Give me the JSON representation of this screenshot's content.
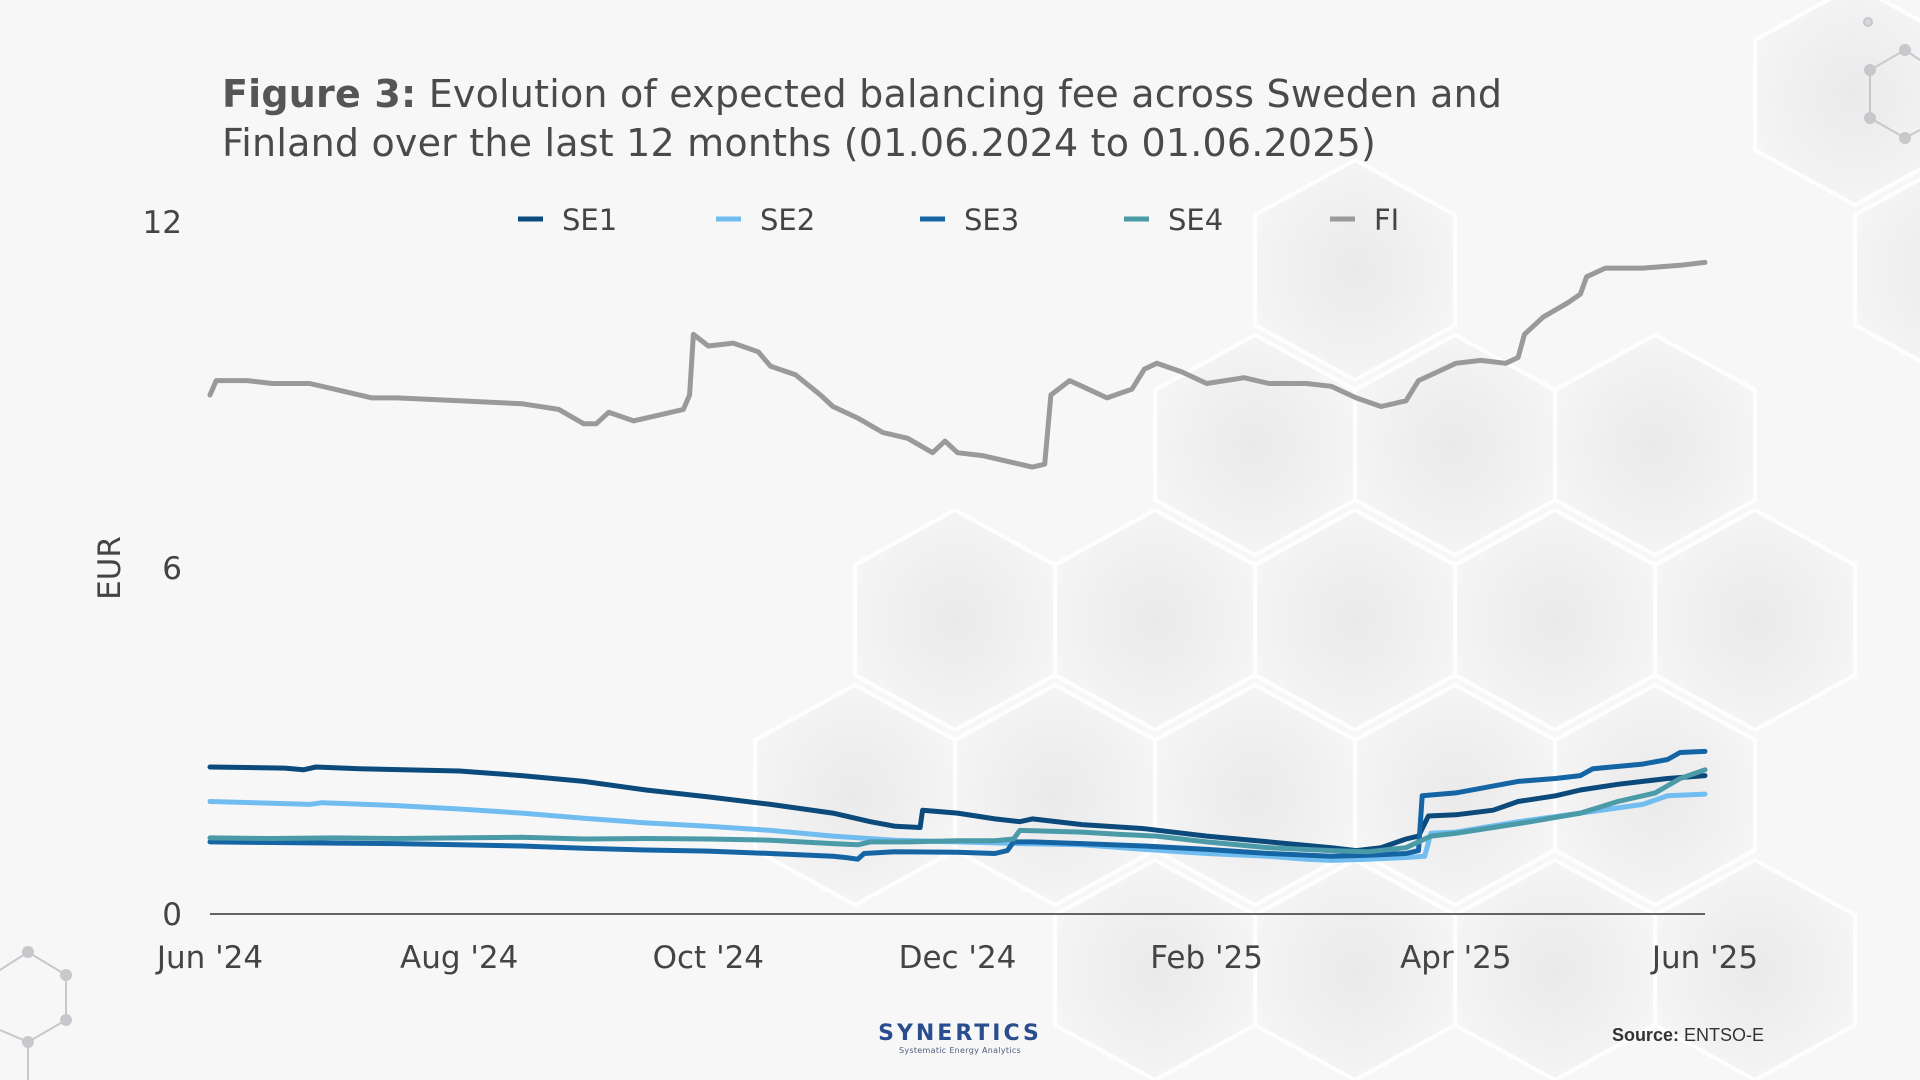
{
  "title": {
    "bold": "Figure 3:",
    "text": "Evolution of expected balancing fee across Sweden and Finland over the last 12 months (01.06.2024 to 01.06.2025)"
  },
  "footer": {
    "logo_name": "SYNERTICS",
    "logo_tagline": "Systematic Energy Analytics",
    "source_label": "Source:",
    "source_value": "ENTSO-E"
  },
  "colors": {
    "SE1": "#0b4a7a",
    "SE2": "#72bdf0",
    "SE3": "#1565a5",
    "SE4": "#4b9aa8",
    "FI": "#9a9a9a",
    "axis": "#333333",
    "text": "#444444"
  },
  "chart_data": {
    "type": "line",
    "title": "Figure 3: Evolution of expected balancing fee across Sweden and Finland over the last 12 months (01.06.2024 to 01.06.2025)",
    "xlabel": "",
    "ylabel": "EUR",
    "ylim": [
      0,
      12
    ],
    "yticks": [
      0,
      6,
      12
    ],
    "xlim": [
      0,
      12
    ],
    "xticks": [
      {
        "value": 0,
        "label": "Jun '24"
      },
      {
        "value": 2,
        "label": "Aug '24"
      },
      {
        "value": 4,
        "label": "Oct '24"
      },
      {
        "value": 6,
        "label": "Dec '24"
      },
      {
        "value": 8,
        "label": "Feb '25"
      },
      {
        "value": 10,
        "label": "Apr '25"
      },
      {
        "value": 12,
        "label": "Jun '25"
      }
    ],
    "legend_position": "top",
    "grid": false,
    "series": [
      {
        "name": "SE1",
        "points": [
          [
            0,
            2.55
          ],
          [
            0.6,
            2.53
          ],
          [
            0.75,
            2.5
          ],
          [
            0.85,
            2.55
          ],
          [
            1.2,
            2.52
          ],
          [
            2,
            2.48
          ],
          [
            2.5,
            2.4
          ],
          [
            3,
            2.3
          ],
          [
            3.5,
            2.15
          ],
          [
            4,
            2.03
          ],
          [
            4.5,
            1.9
          ],
          [
            5,
            1.75
          ],
          [
            5.3,
            1.6
          ],
          [
            5.5,
            1.52
          ],
          [
            5.7,
            1.5
          ],
          [
            5.72,
            1.8
          ],
          [
            6,
            1.75
          ],
          [
            6.3,
            1.65
          ],
          [
            6.5,
            1.6
          ],
          [
            6.6,
            1.65
          ],
          [
            7,
            1.55
          ],
          [
            7.5,
            1.48
          ],
          [
            8,
            1.35
          ],
          [
            8.5,
            1.25
          ],
          [
            9,
            1.15
          ],
          [
            9.2,
            1.1
          ],
          [
            9.4,
            1.15
          ],
          [
            9.6,
            1.3
          ],
          [
            9.7,
            1.35
          ],
          [
            9.78,
            1.7
          ],
          [
            10,
            1.72
          ],
          [
            10.3,
            1.8
          ],
          [
            10.5,
            1.95
          ],
          [
            10.8,
            2.05
          ],
          [
            11,
            2.15
          ],
          [
            11.3,
            2.25
          ],
          [
            11.5,
            2.3
          ],
          [
            11.7,
            2.35
          ],
          [
            12,
            2.4
          ]
        ]
      },
      {
        "name": "SE2",
        "points": [
          [
            0,
            1.95
          ],
          [
            0.5,
            1.92
          ],
          [
            0.8,
            1.9
          ],
          [
            0.9,
            1.93
          ],
          [
            1.5,
            1.88
          ],
          [
            2,
            1.82
          ],
          [
            2.5,
            1.75
          ],
          [
            3,
            1.66
          ],
          [
            3.5,
            1.58
          ],
          [
            4,
            1.52
          ],
          [
            4.5,
            1.45
          ],
          [
            5,
            1.35
          ],
          [
            5.5,
            1.28
          ],
          [
            6,
            1.25
          ],
          [
            6.5,
            1.22
          ],
          [
            7,
            1.2
          ],
          [
            7.5,
            1.12
          ],
          [
            8,
            1.05
          ],
          [
            8.5,
            1.0
          ],
          [
            8.8,
            0.95
          ],
          [
            9,
            0.93
          ],
          [
            9.3,
            0.95
          ],
          [
            9.6,
            0.98
          ],
          [
            9.75,
            1.0
          ],
          [
            9.8,
            1.4
          ],
          [
            10,
            1.42
          ],
          [
            10.5,
            1.6
          ],
          [
            11,
            1.75
          ],
          [
            11.5,
            1.9
          ],
          [
            11.7,
            2.05
          ],
          [
            12,
            2.08
          ]
        ]
      },
      {
        "name": "SE3",
        "points": [
          [
            0,
            1.25
          ],
          [
            0.5,
            1.24
          ],
          [
            1,
            1.23
          ],
          [
            1.5,
            1.22
          ],
          [
            2,
            1.2
          ],
          [
            2.5,
            1.18
          ],
          [
            3,
            1.14
          ],
          [
            3.5,
            1.11
          ],
          [
            4,
            1.09
          ],
          [
            4.5,
            1.05
          ],
          [
            5,
            1.0
          ],
          [
            5.1,
            0.98
          ],
          [
            5.2,
            0.95
          ],
          [
            5.25,
            1.05
          ],
          [
            5.5,
            1.08
          ],
          [
            6,
            1.07
          ],
          [
            6.3,
            1.05
          ],
          [
            6.4,
            1.1
          ],
          [
            6.45,
            1.25
          ],
          [
            6.6,
            1.25
          ],
          [
            7,
            1.22
          ],
          [
            7.5,
            1.18
          ],
          [
            8,
            1.12
          ],
          [
            8.5,
            1.05
          ],
          [
            9,
            1.0
          ],
          [
            9.3,
            1.02
          ],
          [
            9.6,
            1.05
          ],
          [
            9.7,
            1.1
          ],
          [
            9.73,
            2.05
          ],
          [
            10,
            2.1
          ],
          [
            10.5,
            2.3
          ],
          [
            10.8,
            2.35
          ],
          [
            11,
            2.4
          ],
          [
            11.1,
            2.52
          ],
          [
            11.5,
            2.6
          ],
          [
            11.7,
            2.68
          ],
          [
            11.8,
            2.8
          ],
          [
            12,
            2.82
          ]
        ]
      },
      {
        "name": "SE4",
        "points": [
          [
            0,
            1.32
          ],
          [
            0.5,
            1.31
          ],
          [
            1,
            1.32
          ],
          [
            1.5,
            1.31
          ],
          [
            2,
            1.32
          ],
          [
            2.5,
            1.33
          ],
          [
            3,
            1.3
          ],
          [
            3.5,
            1.31
          ],
          [
            4,
            1.3
          ],
          [
            4.5,
            1.28
          ],
          [
            5,
            1.22
          ],
          [
            5.2,
            1.2
          ],
          [
            5.3,
            1.25
          ],
          [
            5.6,
            1.25
          ],
          [
            6,
            1.27
          ],
          [
            6.3,
            1.27
          ],
          [
            6.45,
            1.3
          ],
          [
            6.5,
            1.45
          ],
          [
            7,
            1.42
          ],
          [
            7.3,
            1.38
          ],
          [
            7.6,
            1.35
          ],
          [
            8,
            1.25
          ],
          [
            8.5,
            1.15
          ],
          [
            9,
            1.1
          ],
          [
            9.3,
            1.08
          ],
          [
            9.6,
            1.15
          ],
          [
            9.8,
            1.35
          ],
          [
            10,
            1.4
          ],
          [
            10.3,
            1.5
          ],
          [
            10.6,
            1.6
          ],
          [
            11,
            1.75
          ],
          [
            11.3,
            1.95
          ],
          [
            11.6,
            2.1
          ],
          [
            11.8,
            2.35
          ],
          [
            12,
            2.5
          ]
        ]
      },
      {
        "name": "FI",
        "points": [
          [
            0,
            9.0
          ],
          [
            0.05,
            9.25
          ],
          [
            0.3,
            9.25
          ],
          [
            0.5,
            9.2
          ],
          [
            0.8,
            9.2
          ],
          [
            1,
            9.1
          ],
          [
            1.3,
            8.95
          ],
          [
            1.5,
            8.95
          ],
          [
            2,
            8.9
          ],
          [
            2.5,
            8.85
          ],
          [
            2.8,
            8.75
          ],
          [
            3,
            8.5
          ],
          [
            3.1,
            8.5
          ],
          [
            3.2,
            8.7
          ],
          [
            3.4,
            8.55
          ],
          [
            3.6,
            8.65
          ],
          [
            3.8,
            8.75
          ],
          [
            3.85,
            9.0
          ],
          [
            3.88,
            10.05
          ],
          [
            4,
            9.85
          ],
          [
            4.2,
            9.9
          ],
          [
            4.4,
            9.75
          ],
          [
            4.5,
            9.5
          ],
          [
            4.7,
            9.35
          ],
          [
            4.9,
            9.0
          ],
          [
            5,
            8.8
          ],
          [
            5.2,
            8.6
          ],
          [
            5.4,
            8.35
          ],
          [
            5.6,
            8.25
          ],
          [
            5.8,
            8.0
          ],
          [
            5.9,
            8.2
          ],
          [
            6,
            8.0
          ],
          [
            6.2,
            7.95
          ],
          [
            6.4,
            7.85
          ],
          [
            6.6,
            7.75
          ],
          [
            6.7,
            7.8
          ],
          [
            6.75,
            9.0
          ],
          [
            6.9,
            9.25
          ],
          [
            7,
            9.15
          ],
          [
            7.2,
            8.95
          ],
          [
            7.4,
            9.1
          ],
          [
            7.5,
            9.45
          ],
          [
            7.6,
            9.55
          ],
          [
            7.8,
            9.4
          ],
          [
            8,
            9.2
          ],
          [
            8.3,
            9.3
          ],
          [
            8.5,
            9.2
          ],
          [
            8.8,
            9.2
          ],
          [
            9,
            9.15
          ],
          [
            9.2,
            8.95
          ],
          [
            9.4,
            8.8
          ],
          [
            9.6,
            8.9
          ],
          [
            9.7,
            9.25
          ],
          [
            9.9,
            9.45
          ],
          [
            10,
            9.55
          ],
          [
            10.2,
            9.6
          ],
          [
            10.4,
            9.55
          ],
          [
            10.5,
            9.65
          ],
          [
            10.55,
            10.05
          ],
          [
            10.7,
            10.35
          ],
          [
            10.9,
            10.6
          ],
          [
            11.0,
            10.75
          ],
          [
            11.05,
            11.05
          ],
          [
            11.2,
            11.2
          ],
          [
            11.5,
            11.2
          ],
          [
            11.8,
            11.25
          ],
          [
            12,
            11.3
          ]
        ]
      }
    ]
  }
}
